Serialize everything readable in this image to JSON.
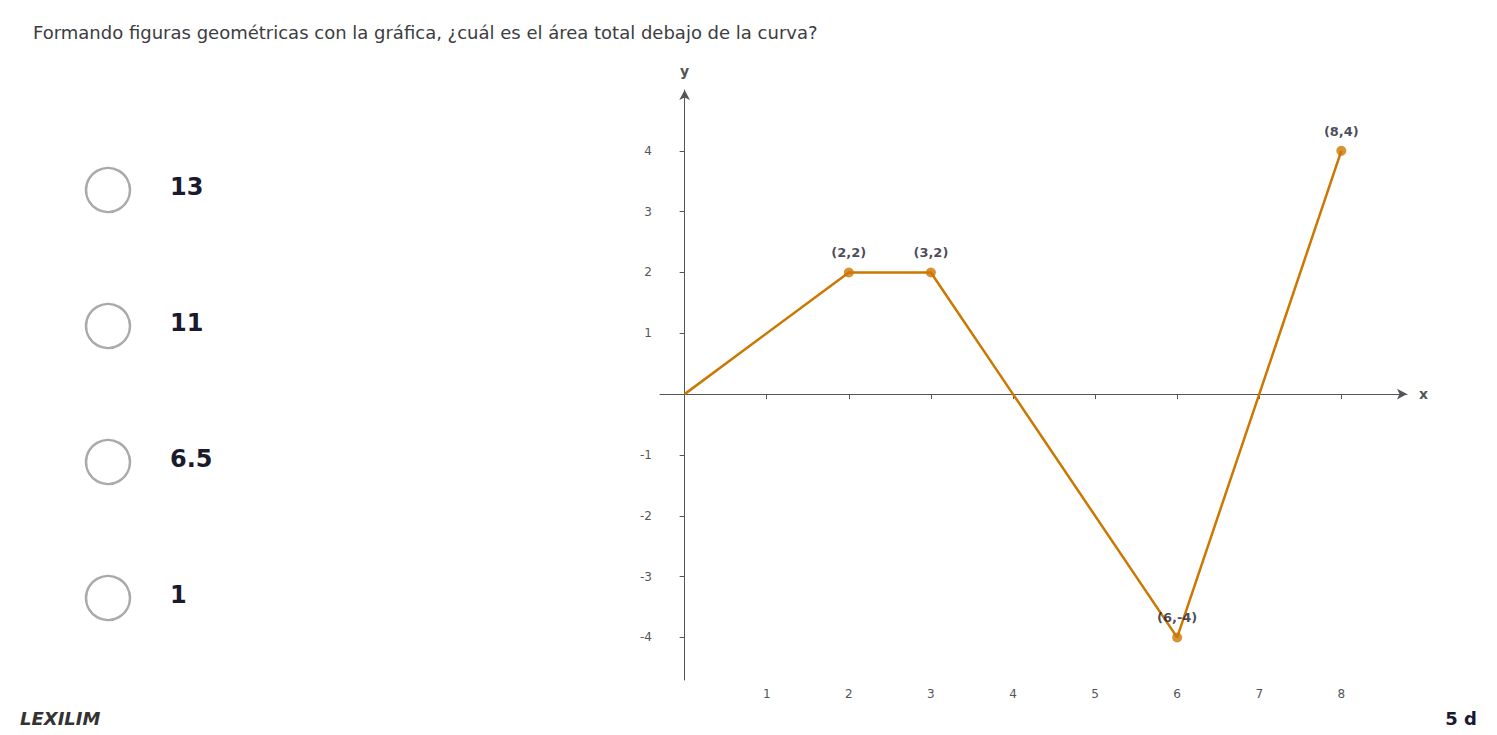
{
  "chart_data": {
    "type": "line",
    "title": "Formando figuras geométricas con la gráfica, ¿cuál es el área total debajo de la curva?",
    "x": [
      0,
      2,
      3,
      4,
      6,
      8
    ],
    "values": [
      0,
      2,
      2,
      0,
      -4,
      4
    ],
    "color": "#cc7700",
    "xlabel": "x",
    "ylabel": "y",
    "xlim": [
      -0.3,
      8.8
    ],
    "ylim": [
      -4.7,
      5.0
    ],
    "xticks": [
      1,
      2,
      3,
      4,
      5,
      6,
      7,
      8
    ],
    "yticks": [
      -4,
      -3,
      -2,
      -1,
      1,
      2,
      3,
      4
    ],
    "grid": false,
    "annotations": [
      {
        "x": 2,
        "y": 2,
        "text": "(2,2)"
      },
      {
        "x": 3,
        "y": 2,
        "text": "(3,2)"
      },
      {
        "x": 6,
        "y": -4,
        "text": "(6,-4)"
      },
      {
        "x": 8,
        "y": 4,
        "text": "(8,4)"
      }
    ],
    "options": [
      "13",
      "11",
      "6.5",
      "1"
    ],
    "corner_text": "5 d",
    "footer_text": "LEXILIM"
  }
}
